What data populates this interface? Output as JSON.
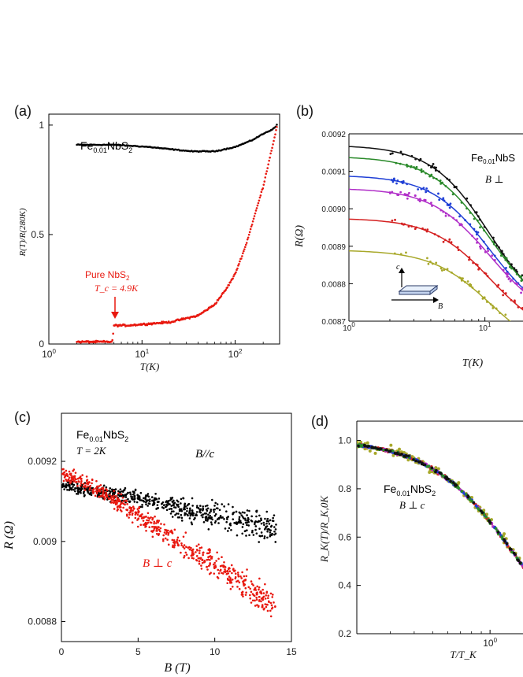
{
  "chart_data": [
    {
      "panel": "(a)",
      "type": "scatter",
      "xscale": "log",
      "xlim": [
        1,
        300
      ],
      "ylim": [
        0,
        1.05
      ],
      "xticks": [
        {
          "v": 1,
          "label": "10",
          "exp": "0"
        },
        {
          "v": 10,
          "label": "10",
          "exp": "1"
        },
        {
          "v": 100,
          "label": "10",
          "exp": "2"
        }
      ],
      "yticks": [
        {
          "v": 0,
          "label": "0"
        },
        {
          "v": 0.5,
          "label": "0.5"
        },
        {
          "v": 1,
          "label": "1"
        }
      ],
      "xlabel": "T(K)",
      "ylabel": "R(T)/R(280K)",
      "series": [
        {
          "name": "Fe0.01NbS2",
          "color": "#000000",
          "x": [
            2,
            3,
            5,
            8,
            12,
            20,
            35,
            60,
            100,
            150,
            200,
            250,
            280
          ],
          "y": [
            0.91,
            0.91,
            0.91,
            0.905,
            0.9,
            0.89,
            0.88,
            0.88,
            0.9,
            0.93,
            0.96,
            0.98,
            1.0
          ]
        },
        {
          "name": "Pure NbS2",
          "color": "#e8180f",
          "x": [
            2,
            3,
            4,
            4.8,
            5,
            7,
            10,
            20,
            40,
            60,
            80,
            100,
            130,
            160,
            200,
            250,
            280
          ],
          "y": [
            0.01,
            0.01,
            0.01,
            0.01,
            0.085,
            0.085,
            0.09,
            0.1,
            0.13,
            0.18,
            0.25,
            0.32,
            0.45,
            0.58,
            0.72,
            0.9,
            0.99
          ]
        }
      ],
      "annotations": {
        "fe": {
          "pre": "Fe",
          "sub": "0.01",
          "post": "NbS",
          "post_sub": "2"
        },
        "pure": {
          "pre": "Pure NbS",
          "sub": "2"
        },
        "tc": "T_c = 4.9K"
      }
    },
    {
      "panel": "(b)",
      "type": "scatter",
      "xscale": "log",
      "xlim": [
        1,
        30
      ],
      "ylim": [
        0.0087,
        0.0092
      ],
      "xticks": [
        {
          "v": 1,
          "label": "10",
          "exp": "0"
        },
        {
          "v": 10,
          "label": "10",
          "exp": "1"
        }
      ],
      "yticks": [
        {
          "v": 0.0087,
          "label": "0.0087"
        },
        {
          "v": 0.0088,
          "label": "0.0088"
        },
        {
          "v": 0.0089,
          "label": "0.0089"
        },
        {
          "v": 0.009,
          "label": "0.0090"
        },
        {
          "v": 0.0091,
          "label": "0.0091"
        },
        {
          "v": 0.0092,
          "label": "0.0092"
        }
      ],
      "xlabel": "T(K)",
      "ylabel": "R(Ω)",
      "series": [
        {
          "name": "black",
          "color": "#111111",
          "R0": 0.00917
        },
        {
          "name": "green",
          "color": "#2a8a2a",
          "R0": 0.00914
        },
        {
          "name": "blue",
          "color": "#1f3fd6",
          "R0": 0.00909
        },
        {
          "name": "magenta",
          "color": "#b02ec8",
          "R0": 0.009055
        },
        {
          "name": "red",
          "color": "#d42020",
          "R0": 0.008975
        },
        {
          "name": "olive",
          "color": "#a8a82a",
          "R0": 0.00889
        }
      ],
      "annotations": {
        "title": {
          "pre": "Fe",
          "sub": "0.01",
          "post": "NbS"
        },
        "field": "B ⊥",
        "inset_c": "c",
        "inset_b": "B"
      }
    },
    {
      "panel": "(c)",
      "type": "scatter",
      "xlim": [
        0,
        15
      ],
      "ylim": [
        0.00875,
        0.00932
      ],
      "xticks": [
        {
          "v": 0,
          "label": "0"
        },
        {
          "v": 5,
          "label": "5"
        },
        {
          "v": 10,
          "label": "10"
        },
        {
          "v": 15,
          "label": "15"
        }
      ],
      "yticks": [
        {
          "v": 0.0088,
          "label": "0.0088"
        },
        {
          "v": 0.009,
          "label": "0.009"
        },
        {
          "v": 0.0092,
          "label": "0.0092"
        }
      ],
      "xlabel": "B (T)",
      "ylabel": "R (Ω)",
      "series": [
        {
          "name": "B//c",
          "color": "#000000",
          "x": [
            0,
            2,
            4,
            6,
            8,
            10,
            12,
            14
          ],
          "y": [
            0.00914,
            0.009125,
            0.009115,
            0.0091,
            0.00908,
            0.009065,
            0.00905,
            0.00903
          ]
        },
        {
          "name": "B ⊥ c",
          "color": "#e8180f",
          "x": [
            0,
            2,
            4,
            6,
            8,
            10,
            12,
            14
          ],
          "y": [
            0.00917,
            0.00914,
            0.00909,
            0.00904,
            0.00899,
            0.00894,
            0.00889,
            0.00884
          ]
        }
      ],
      "annotations": {
        "title": {
          "pre": "Fe",
          "sub": "0.01",
          "post": "NbS",
          "post_sub": "2"
        },
        "temp": "T = 2K",
        "b_par": "B//c",
        "b_perp": "B ⊥ c"
      }
    },
    {
      "panel": "(d)",
      "type": "scatter",
      "xscale": "log",
      "xlim": [
        0.2,
        2.2
      ],
      "ylim": [
        0.2,
        1.08
      ],
      "xticks": [
        {
          "v": 1,
          "label": "10",
          "exp": "0"
        }
      ],
      "yticks": [
        {
          "v": 0.2,
          "label": "0.2"
        },
        {
          "v": 0.4,
          "label": "0.4"
        },
        {
          "v": 0.6,
          "label": "0.6"
        },
        {
          "v": 0.8,
          "label": "0.8"
        },
        {
          "v": 1.0,
          "label": "1.0"
        }
      ],
      "xlabel": "T/T_K",
      "ylabel": "R_K(T)/R_K,0K",
      "series": [
        {
          "name": "olive",
          "color": "#a8a82a"
        },
        {
          "name": "red",
          "color": "#d42020"
        },
        {
          "name": "magenta",
          "color": "#b02ec8"
        },
        {
          "name": "blue",
          "color": "#1f3fd6"
        },
        {
          "name": "green",
          "color": "#2a8a2a"
        },
        {
          "name": "black",
          "color": "#111111"
        }
      ],
      "annotations": {
        "title": {
          "pre": "Fe",
          "sub": "0.01",
          "post": "NbS",
          "post_sub": "2"
        },
        "field": "B ⊥ c"
      }
    }
  ]
}
